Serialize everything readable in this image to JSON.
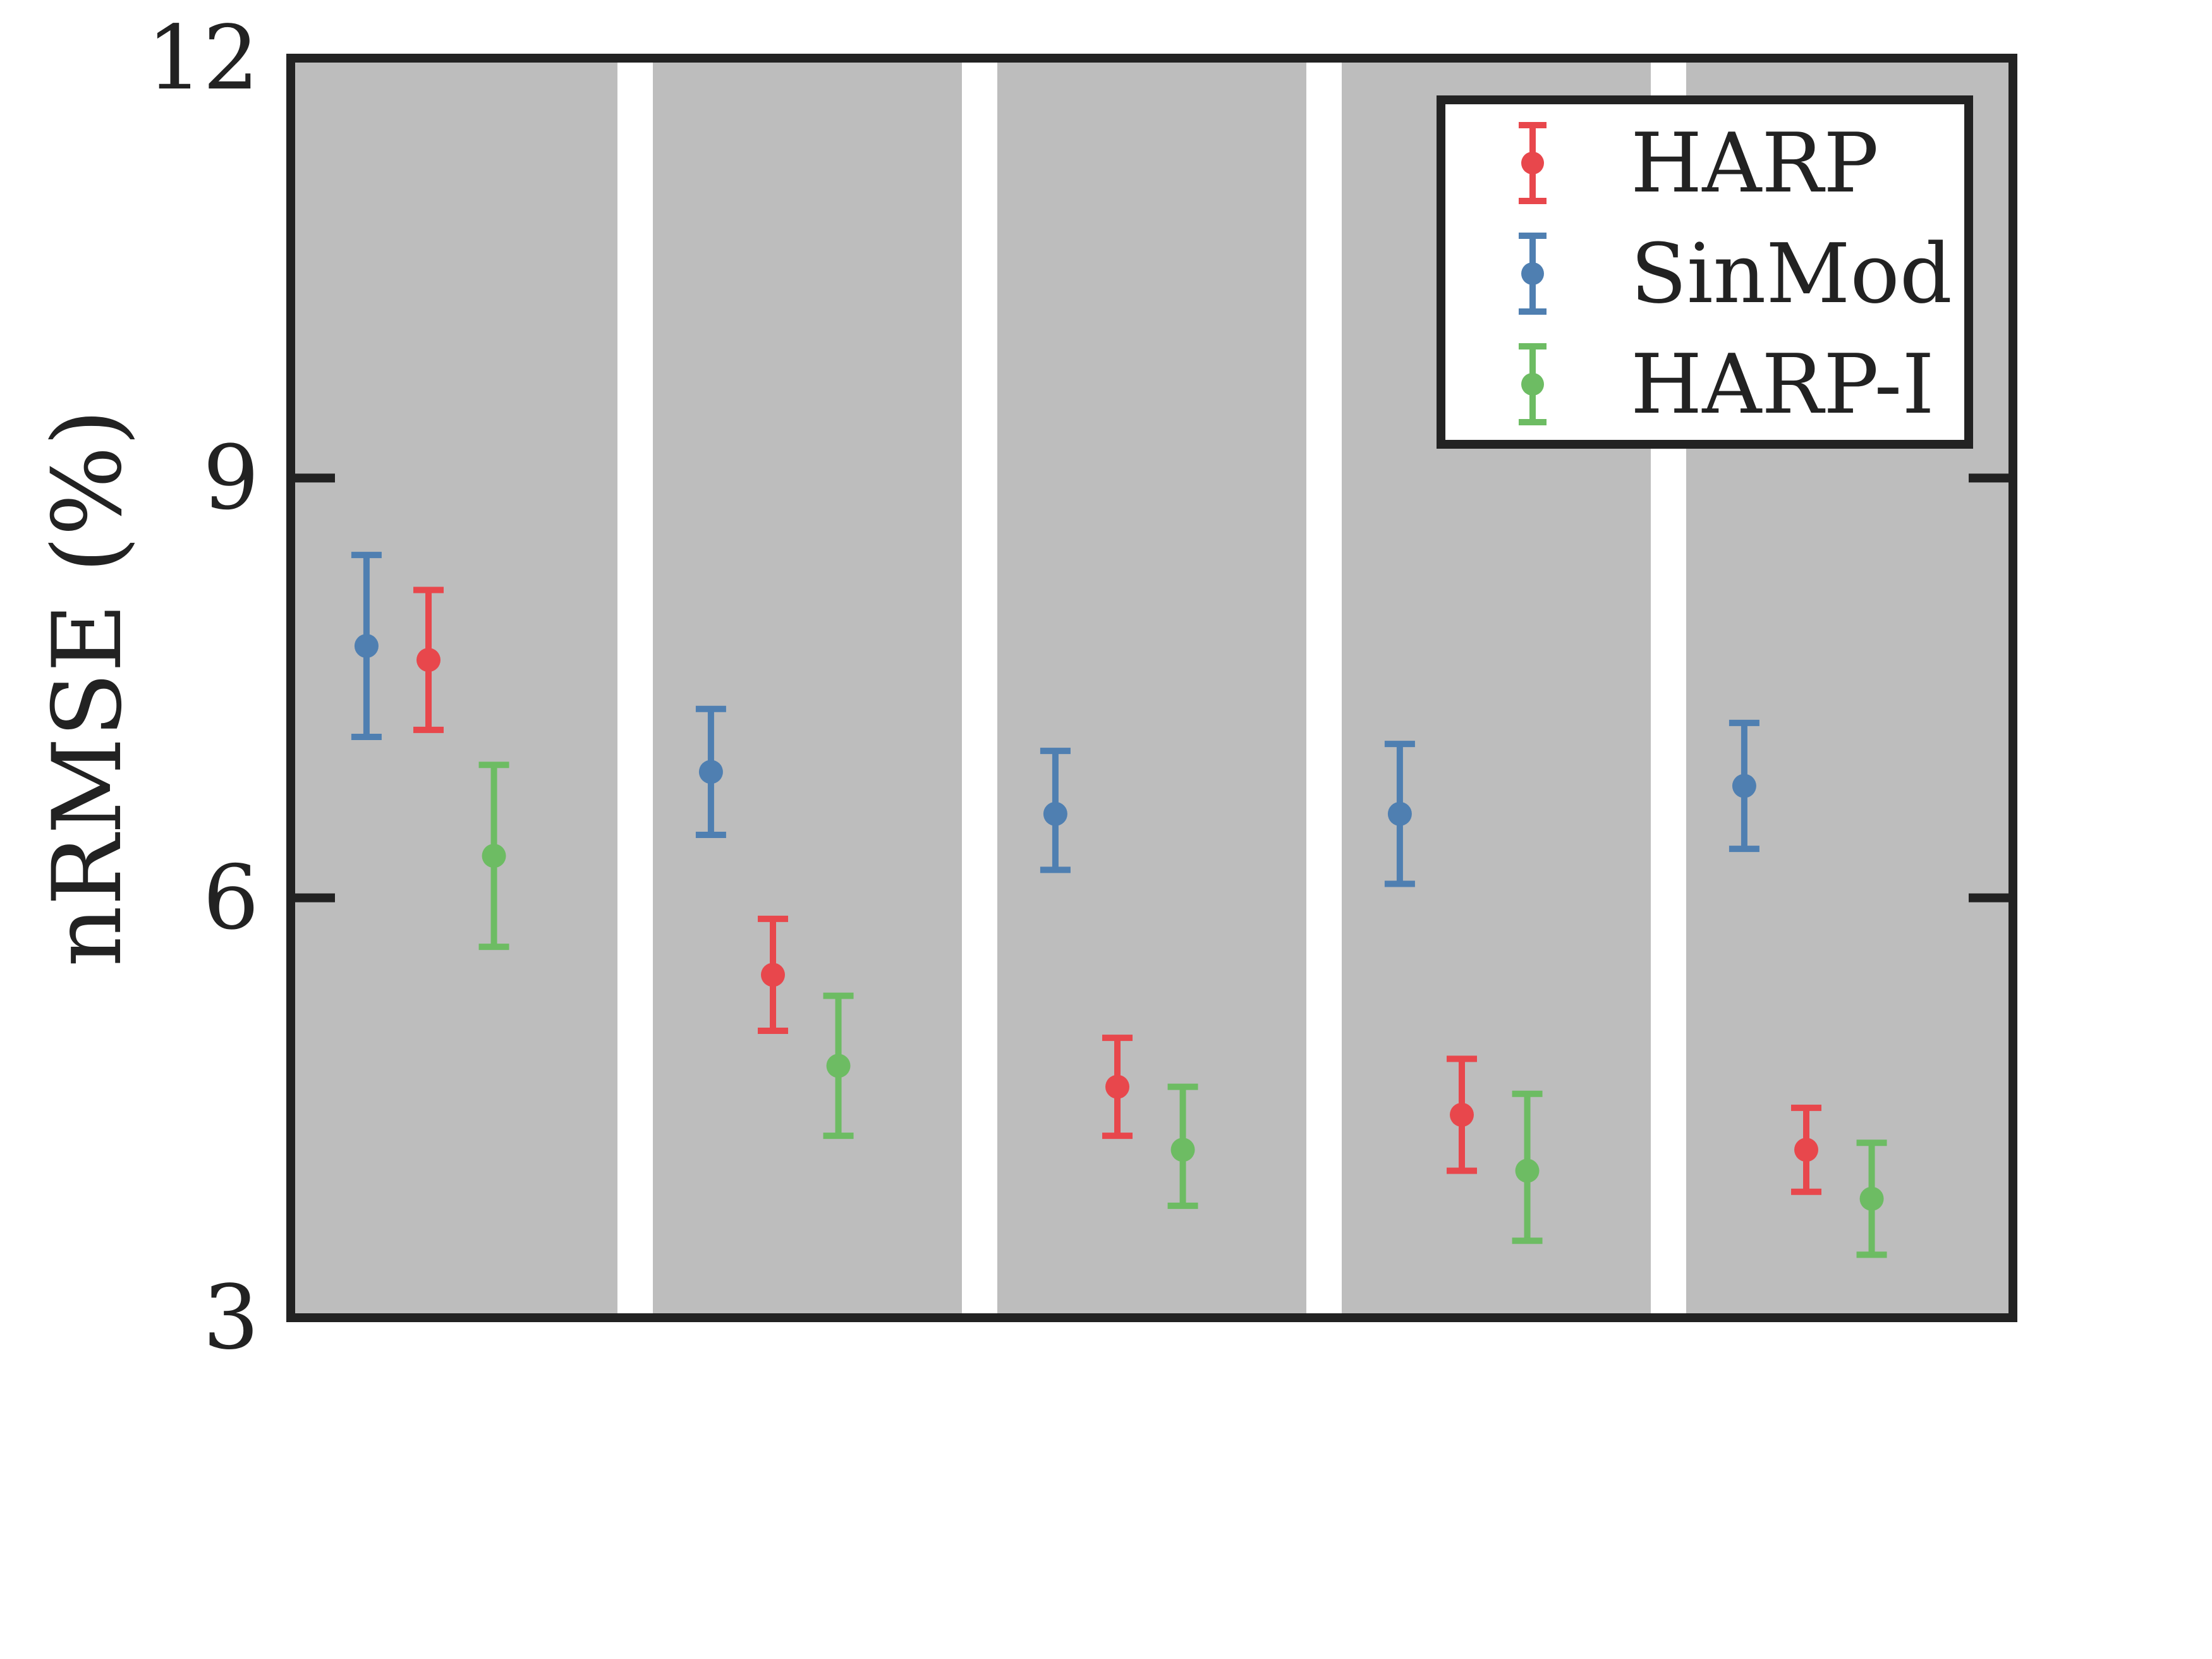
{
  "chart_data": {
    "type": "scatter",
    "title": "",
    "xlabel": "",
    "ylabel": "nRMSE (%)",
    "ylim": [
      3,
      12
    ],
    "yticks": [
      "3",
      "6",
      "9",
      "12"
    ],
    "grid": false,
    "legend_position": "top-right",
    "groups": 5,
    "series": [
      {
        "name": "HARP",
        "color": "#e8474c",
        "mean": [
          7.7,
          5.45,
          4.65,
          4.45,
          4.2
        ],
        "lower": [
          7.2,
          5.05,
          4.3,
          4.05,
          3.9
        ],
        "upper": [
          8.2,
          5.85,
          5.0,
          4.85,
          4.5
        ]
      },
      {
        "name": "SinMod",
        "color": "#4f7fb1",
        "mean": [
          7.8,
          6.9,
          6.6,
          6.6,
          6.8
        ],
        "lower": [
          7.15,
          6.45,
          6.2,
          6.1,
          6.35
        ],
        "upper": [
          8.45,
          7.35,
          7.05,
          7.1,
          7.25
        ]
      },
      {
        "name": "HARP-I",
        "color": "#6dbc63",
        "mean": [
          6.3,
          4.8,
          4.2,
          4.05,
          3.85
        ],
        "lower": [
          5.65,
          4.3,
          3.8,
          3.55,
          3.45
        ],
        "upper": [
          6.95,
          5.3,
          4.65,
          4.6,
          4.25
        ]
      }
    ]
  }
}
